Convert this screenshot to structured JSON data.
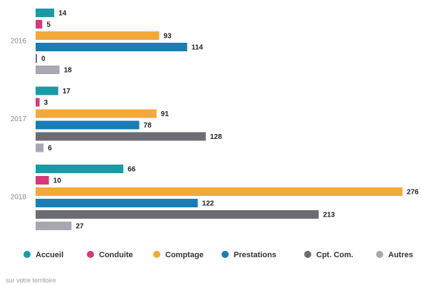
{
  "chart_data": {
    "type": "hbar",
    "categories": [
      "2016",
      "2017",
      "2018"
    ],
    "series": [
      {
        "name": "Accueil",
        "color": "#1b9aa6",
        "values": [
          14,
          17,
          66
        ]
      },
      {
        "name": "Conduite",
        "color": "#d33a78",
        "values": [
          5,
          3,
          10
        ]
      },
      {
        "name": "Comptage",
        "color": "#f2a93b",
        "values": [
          93,
          91,
          276
        ]
      },
      {
        "name": "Prestations",
        "color": "#1a7db5",
        "values": [
          114,
          78,
          122
        ]
      },
      {
        "name": "Cpt. Com.",
        "color": "#6c6c74",
        "values": [
          0,
          128,
          213
        ]
      },
      {
        "name": "Autres",
        "color": "#a8a8b2",
        "values": [
          18,
          6,
          27
        ]
      }
    ],
    "note": "sur votre territoire",
    "legend": "bottom"
  }
}
